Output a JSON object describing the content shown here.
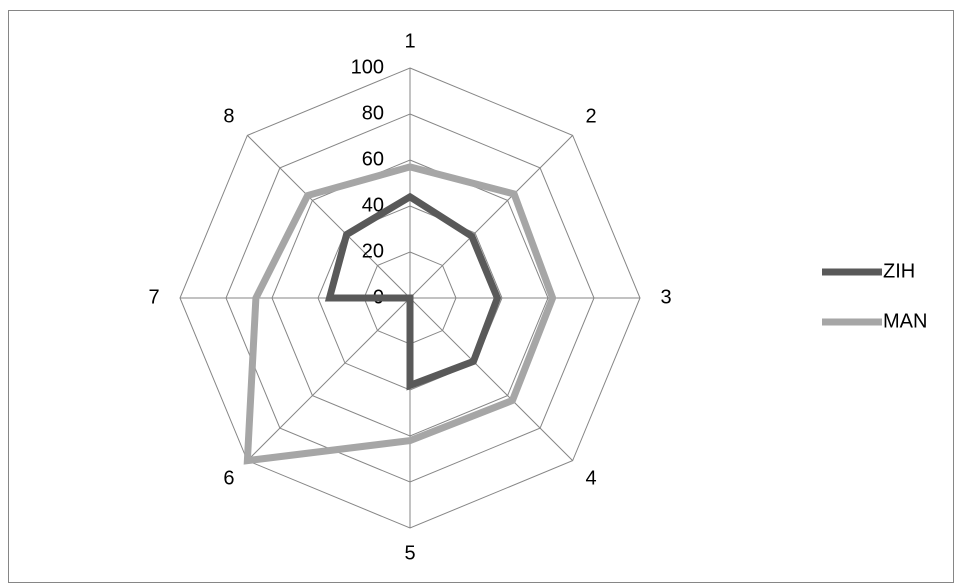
{
  "chart_data": {
    "type": "radar",
    "categories": [
      "1",
      "2",
      "3",
      "4",
      "5",
      "6",
      "7",
      "8"
    ],
    "series": [
      {
        "name": "ZIH",
        "color": "#595959",
        "values": [
          44,
          38,
          38,
          39,
          38,
          0,
          35,
          39
        ]
      },
      {
        "name": "MAN",
        "color": "#a6a6a6",
        "values": [
          57,
          64,
          62,
          63,
          62,
          100,
          67,
          63
        ]
      }
    ],
    "rlim": [
      0,
      100
    ],
    "rticks": [
      0,
      20,
      40,
      60,
      80,
      100
    ],
    "grid": true,
    "legend": "right"
  }
}
